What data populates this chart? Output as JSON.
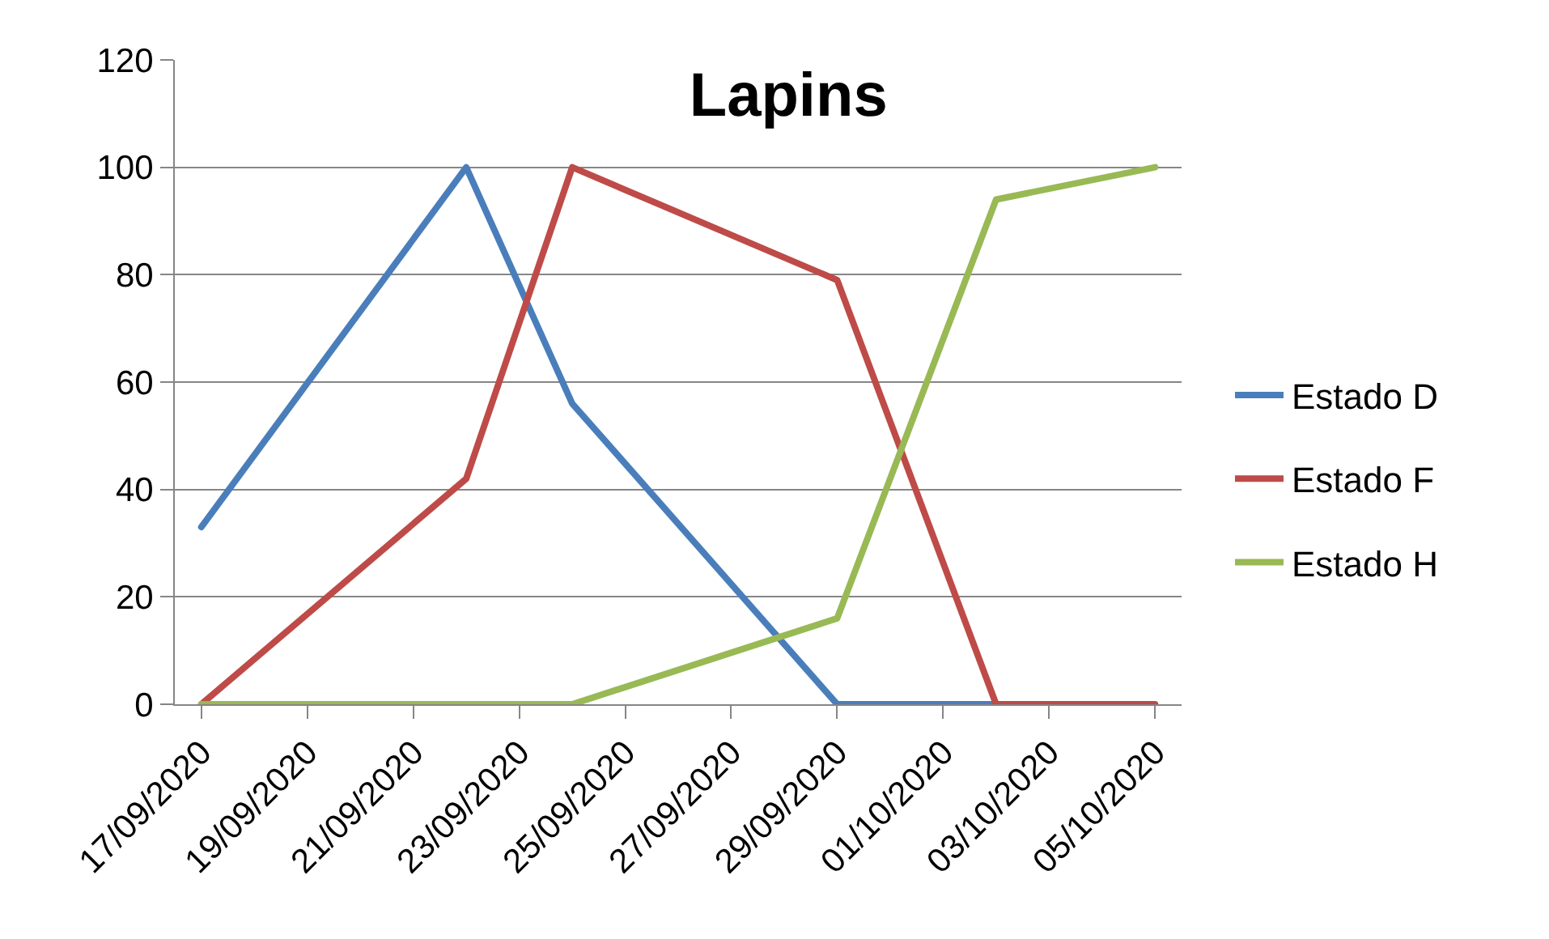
{
  "chart_data": {
    "type": "line",
    "title": "Lapins",
    "x": [
      "2020-09-17",
      "2020-09-22",
      "2020-09-24",
      "2020-09-29",
      "2020-10-02",
      "2020-10-05"
    ],
    "series": [
      {
        "name": "Estado D",
        "color": "#4a7ebb",
        "values": [
          33,
          100,
          56,
          0,
          0,
          null
        ]
      },
      {
        "name": "Estado F",
        "color": "#be4b48",
        "values": [
          0,
          42,
          100,
          79,
          0,
          0
        ]
      },
      {
        "name": "Estado H",
        "color": "#98b954",
        "values": [
          0,
          0,
          0,
          16,
          94,
          100
        ]
      }
    ],
    "xlim": [
      "2020-09-16T12:00",
      "2020-10-05T12:00"
    ],
    "xticks": [
      {
        "value": "2020-09-17",
        "label": "17/09/2020"
      },
      {
        "value": "2020-09-19",
        "label": "19/09/2020"
      },
      {
        "value": "2020-09-21",
        "label": "21/09/2020"
      },
      {
        "value": "2020-09-23",
        "label": "23/09/2020"
      },
      {
        "value": "2020-09-25",
        "label": "25/09/2020"
      },
      {
        "value": "2020-09-27",
        "label": "27/09/2020"
      },
      {
        "value": "2020-09-29",
        "label": "29/09/2020"
      },
      {
        "value": "2020-10-01",
        "label": "01/10/2020"
      },
      {
        "value": "2020-10-03",
        "label": "03/10/2020"
      },
      {
        "value": "2020-10-05",
        "label": "05/10/2020"
      }
    ],
    "ylim": [
      0,
      120
    ],
    "yticks": [
      0,
      20,
      40,
      60,
      80,
      100,
      120
    ],
    "grid": "y",
    "legend": "right",
    "marker": "none",
    "line_style": "solid"
  }
}
